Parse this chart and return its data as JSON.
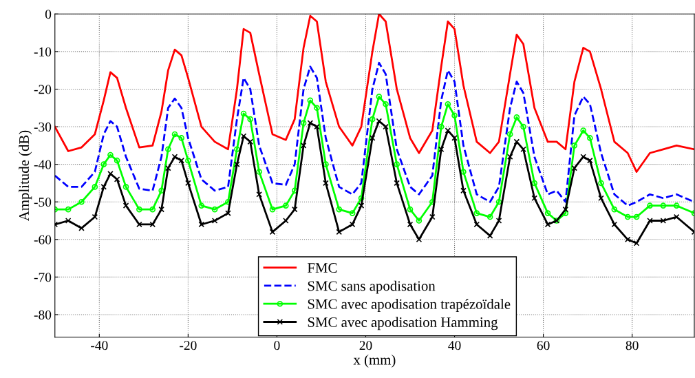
{
  "chart_data": {
    "type": "line",
    "xlabel": "x (mm)",
    "ylabel": "Amplitude (dB)",
    "x": [
      -50,
      -47,
      -44,
      -41,
      -39,
      -37.5,
      -36,
      -34,
      -31,
      -28,
      -26,
      -24.5,
      -23,
      -21.5,
      -20,
      -17,
      -14,
      -11,
      -9,
      -7.5,
      -6,
      -4,
      -1,
      2,
      4,
      6,
      7.5,
      9,
      11,
      14,
      17,
      19,
      21.5,
      23,
      24.5,
      27,
      30,
      32,
      35,
      37,
      38.5,
      40,
      42,
      45,
      48,
      50,
      52.5,
      54,
      55.5,
      58,
      61,
      63,
      65,
      67,
      69,
      70.5,
      73,
      76,
      79,
      81,
      84,
      87,
      90,
      94
    ],
    "series": [
      {
        "name": "FMC",
        "color": "#ff0000",
        "line_style": "solid",
        "marker": "none",
        "values": [
          -30,
          -36.5,
          -35.5,
          -32,
          -23,
          -15.5,
          -17,
          -25,
          -35.5,
          -35,
          -26,
          -15,
          -9.5,
          -11,
          -17,
          -30,
          -34,
          -36,
          -20,
          -4,
          -5,
          -16,
          -32,
          -33.5,
          -28,
          -9,
          -0.5,
          -2,
          -18,
          -30,
          -35,
          -30,
          -10,
          0,
          -2,
          -20,
          -33,
          -37,
          -31,
          -14,
          -2,
          -4,
          -19,
          -34,
          -37,
          -34,
          -16,
          -5.5,
          -8,
          -25,
          -34,
          -34,
          -36,
          -18,
          -9,
          -10,
          -20,
          -34,
          -37,
          -42,
          -37,
          -36,
          -35,
          -36
        ]
      },
      {
        "name": "SMC sans apodisation",
        "color": "#0000ff",
        "line_style": "dashed",
        "marker": "none",
        "values": [
          -43,
          -46,
          -46,
          -42,
          -32,
          -28.5,
          -30,
          -38,
          -46.5,
          -47,
          -38,
          -25,
          -22.5,
          -25,
          -33,
          -44,
          -47,
          -46,
          -28,
          -17,
          -20,
          -35,
          -45,
          -45.5,
          -40,
          -20,
          -14,
          -17,
          -33,
          -46,
          -48,
          -45,
          -20,
          -13,
          -16,
          -36,
          -46,
          -48,
          -43,
          -23,
          -15,
          -18,
          -35,
          -48,
          -50,
          -46,
          -25,
          -18,
          -21,
          -38,
          -48,
          -47,
          -50,
          -27,
          -22,
          -24,
          -37,
          -48,
          -51,
          -50,
          -48,
          -49,
          -48,
          -50
        ]
      },
      {
        "name": "SMC avec apodisation trapézoïdale",
        "color": "#00ff00",
        "line_style": "solid",
        "marker": "circle",
        "values": [
          -52,
          -52,
          -50,
          -46,
          -40,
          -37.5,
          -39,
          -46,
          -52,
          -52,
          -47,
          -36,
          -32,
          -33,
          -39,
          -51,
          -52,
          -50,
          -36,
          -26.5,
          -28,
          -42,
          -52,
          -51,
          -47,
          -29,
          -23,
          -25,
          -40,
          -52,
          -53,
          -49,
          -28,
          -22,
          -24,
          -40,
          -52,
          -55,
          -50,
          -30,
          -24,
          -27,
          -42,
          -53,
          -54,
          -50,
          -32,
          -27.5,
          -30,
          -45,
          -53,
          -55,
          -53,
          -35,
          -31,
          -33,
          -45,
          -52,
          -54,
          -54,
          -51,
          -51,
          -51,
          -53
        ]
      },
      {
        "name": "SMC avec apodisation Hamming",
        "color": "#000000",
        "line_style": "solid",
        "marker": "cross",
        "values": [
          -56,
          -55,
          -57,
          -54,
          -46,
          -42.5,
          -44,
          -51,
          -56,
          -56,
          -52,
          -41,
          -38,
          -39,
          -45,
          -56,
          -55,
          -53,
          -40,
          -32.5,
          -34,
          -48,
          -58,
          -55,
          -52,
          -35,
          -29,
          -30,
          -45,
          -58,
          -56,
          -51,
          -33,
          -28.5,
          -30,
          -45,
          -56,
          -60,
          -54,
          -36,
          -31,
          -33,
          -47,
          -56,
          -59,
          -55,
          -38,
          -34,
          -36,
          -49,
          -56,
          -55,
          -52,
          -41,
          -38,
          -39,
          -49,
          -56,
          -60,
          -61,
          -55,
          -55,
          -54,
          -58
        ]
      }
    ],
    "xlim": [
      -50,
      94
    ],
    "ylim": [
      -86,
      0
    ],
    "xticks": [
      -40,
      -20,
      0,
      20,
      40,
      60,
      80
    ],
    "yticks": [
      -80,
      -70,
      -60,
      -50,
      -40,
      -30,
      -20,
      -10,
      0
    ],
    "grid": true,
    "legend": "bottom"
  }
}
